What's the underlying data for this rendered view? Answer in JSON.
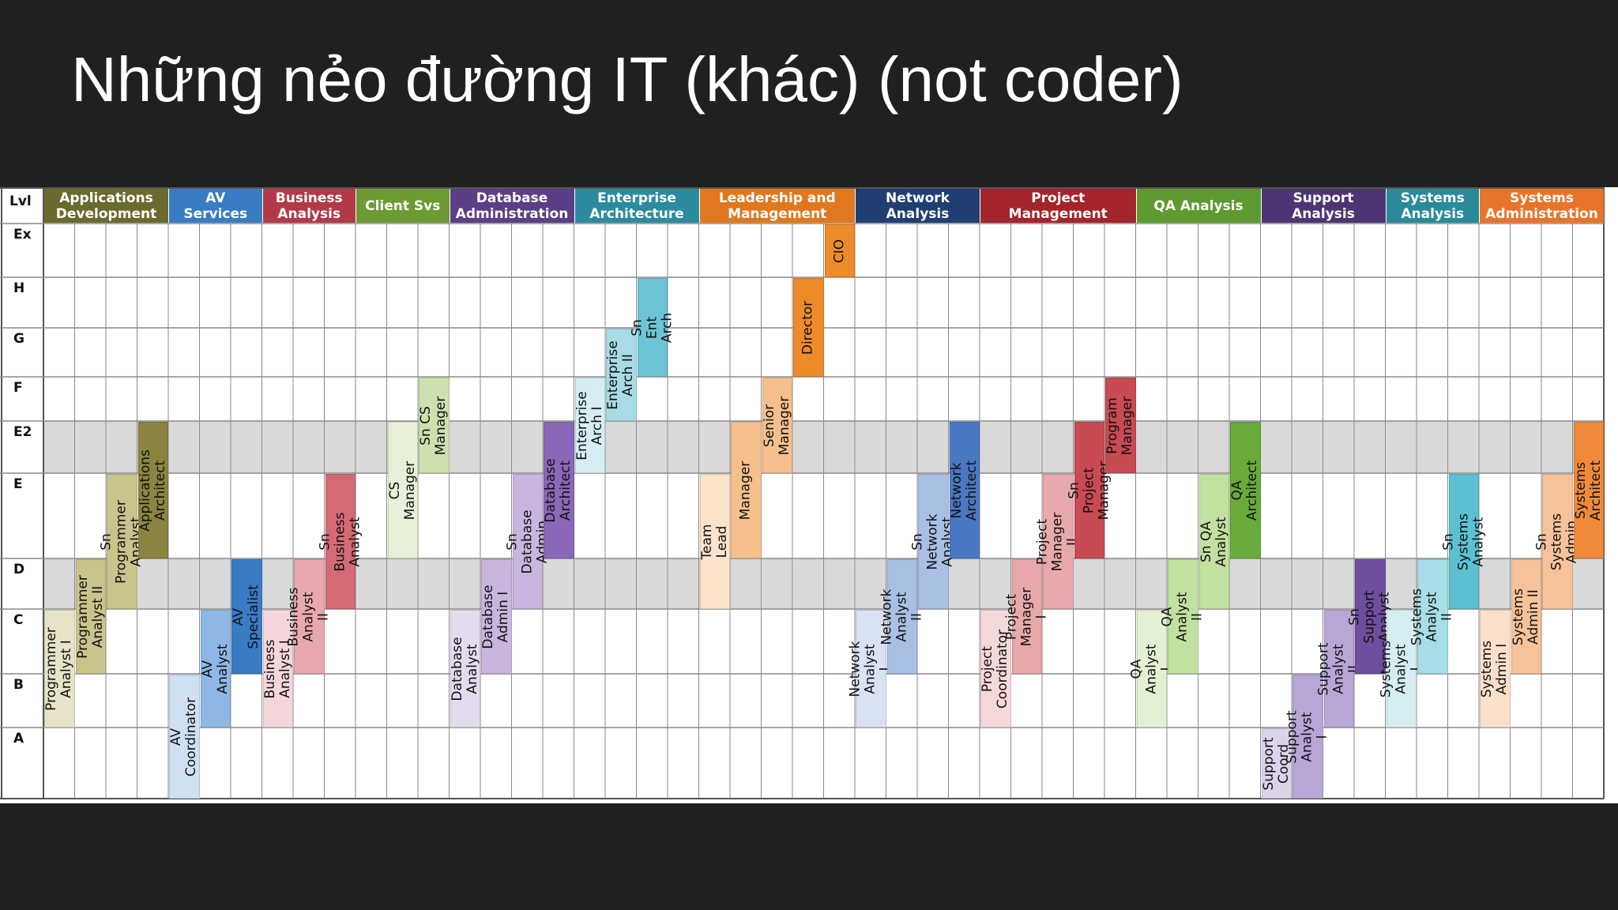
{
  "title": "Những nẻo đường IT (khác) (not coder)",
  "level_header": "Lvl",
  "levels": [
    "Ex",
    "H",
    "G",
    "F",
    "E2",
    "E",
    "D",
    "C",
    "B",
    "A"
  ],
  "shaded_levels": [
    "E2",
    "D"
  ],
  "categories": [
    {
      "label": "Applications\nDevelopment",
      "color": "#6b6a2e",
      "light": "#e6e3c8",
      "mid": "#c9c48c",
      "dark": "#8a8440"
    },
    {
      "label": "AV\nServices",
      "color": "#3a7cc4",
      "light": "#cfe0f3",
      "mid": "#8fb7e6",
      "dark": "#3a7cc4"
    },
    {
      "label": "Business\nAnalysis",
      "color": "#b23a48",
      "light": "#f5d6da",
      "mid": "#e8a8b0",
      "dark": "#d46a76"
    },
    {
      "label": "Client Svs",
      "color": "#6e9a34",
      "light": "#e7f0d8",
      "mid": "#cde0ae",
      "dark": "#a8c878"
    },
    {
      "label": "Database\nAdministration",
      "color": "#5b3f86",
      "light": "#e3dbee",
      "mid": "#c8b6de",
      "dark": "#8a67b8"
    },
    {
      "label": "Enterprise\nArchitecture",
      "color": "#2c8b9e",
      "light": "#d6eef3",
      "mid": "#a8dbe6",
      "dark": "#6cc4d6"
    },
    {
      "label": "Leadership and\nManagement",
      "color": "#e07820",
      "light": "#fbe3cc",
      "mid": "#f5c08c",
      "dark": "#ef8a2a"
    },
    {
      "label": "Network\nAnalysis",
      "color": "#1f3f73",
      "light": "#d8e2f2",
      "mid": "#a9c0e4",
      "dark": "#4a78c2"
    },
    {
      "label": "Project\nManagement",
      "color": "#a3242a",
      "light": "#f5d8da",
      "mid": "#e8a9ac",
      "dark": "#c84a52"
    },
    {
      "label": "QA Analysis",
      "color": "#5e9a2f",
      "light": "#e4f0d4",
      "mid": "#c2e0a0",
      "dark": "#6aaa3a"
    },
    {
      "label": "Support\nAnalysis",
      "color": "#4d3574",
      "light": "#dcd3ea",
      "mid": "#b8a6d6",
      "dark": "#6e4e9e"
    },
    {
      "label": "Systems\nAnalysis",
      "color": "#2a8a9a",
      "light": "#d6eef2",
      "mid": "#a6dde6",
      "dark": "#5cc0d0"
    },
    {
      "label": "Systems\nAdministration",
      "color": "#e8742a",
      "light": "#fbe0cc",
      "mid": "#f6c29a",
      "dark": "#f08a3a"
    }
  ],
  "roles": [
    {
      "cat": 0,
      "col": 0,
      "from": "B",
      "to": "C",
      "shade": "light",
      "label": "Programmer\nAnalyst I"
    },
    {
      "cat": 0,
      "col": 1,
      "from": "C",
      "to": "D",
      "shade": "mid",
      "label": "Programmer\nAnalyst II"
    },
    {
      "cat": 0,
      "col": 2,
      "from": "D",
      "to": "E",
      "shade": "mid",
      "label": "Sn Programmer\nAnalyst"
    },
    {
      "cat": 0,
      "col": 3,
      "from": "E",
      "to": "E2",
      "shade": "dark",
      "label": "Applications\nArchitect"
    },
    {
      "cat": 1,
      "col": 0,
      "from": "A",
      "to": "B",
      "shade": "light",
      "label": "AV Coordinator"
    },
    {
      "cat": 1,
      "col": 1,
      "from": "B",
      "to": "C",
      "shade": "mid",
      "label": "AV Analyst"
    },
    {
      "cat": 1,
      "col": 2,
      "from": "C",
      "to": "D",
      "shade": "dark",
      "label": "AV Specialist"
    },
    {
      "cat": 2,
      "col": 0,
      "from": "B",
      "to": "C",
      "shade": "light",
      "label": "Business\nAnalyst I"
    },
    {
      "cat": 2,
      "col": 1,
      "from": "C",
      "to": "D",
      "shade": "mid",
      "label": "Business\nAnalyst II"
    },
    {
      "cat": 2,
      "col": 2,
      "from": "D",
      "to": "E",
      "shade": "dark",
      "label": "Sn Business\nAnalyst"
    },
    {
      "cat": 3,
      "col": 1,
      "from": "E",
      "to": "E2",
      "shade": "light",
      "label": "CS Manager"
    },
    {
      "cat": 3,
      "col": 2,
      "from": "E2",
      "to": "F",
      "shade": "mid",
      "label": "Sn CS\nManager"
    },
    {
      "cat": 4,
      "col": 0,
      "from": "B",
      "to": "C",
      "shade": "light",
      "label": "Database\nAnalyst"
    },
    {
      "cat": 4,
      "col": 1,
      "from": "C",
      "to": "D",
      "shade": "mid",
      "label": "Database\nAdmin I"
    },
    {
      "cat": 4,
      "col": 2,
      "from": "D",
      "to": "E",
      "shade": "mid",
      "label": "Sn Database\nAdmin"
    },
    {
      "cat": 4,
      "col": 3,
      "from": "E",
      "to": "E2",
      "shade": "dark",
      "label": "Database\nArchitect"
    },
    {
      "cat": 5,
      "col": 0,
      "from": "E2",
      "to": "F",
      "shade": "light",
      "label": "Enterprise\nArch I"
    },
    {
      "cat": 5,
      "col": 1,
      "from": "F",
      "to": "G",
      "shade": "mid",
      "label": "Enterprise\nArch II"
    },
    {
      "cat": 5,
      "col": 2,
      "from": "G",
      "to": "H",
      "shade": "dark",
      "label": "Sn Ent Arch"
    },
    {
      "cat": 6,
      "col": 0,
      "from": "D",
      "to": "E",
      "shade": "light",
      "label": "Team Lead"
    },
    {
      "cat": 6,
      "col": 1,
      "from": "E",
      "to": "E2",
      "shade": "mid",
      "label": "Manager"
    },
    {
      "cat": 6,
      "col": 2,
      "from": "E2",
      "to": "F",
      "shade": "mid",
      "label": "Senior\nManager"
    },
    {
      "cat": 6,
      "col": 3,
      "from": "G",
      "to": "H",
      "shade": "dark",
      "label": "Director"
    },
    {
      "cat": 6,
      "col": 4,
      "from": "Ex",
      "to": "Ex",
      "shade": "dark",
      "label": "CIO"
    },
    {
      "cat": 7,
      "col": 0,
      "from": "B",
      "to": "C",
      "shade": "light",
      "label": "Network\nAnalyst I"
    },
    {
      "cat": 7,
      "col": 1,
      "from": "C",
      "to": "D",
      "shade": "mid",
      "label": "Network\nAnalyst II"
    },
    {
      "cat": 7,
      "col": 2,
      "from": "D",
      "to": "E",
      "shade": "mid",
      "label": "Sn Network\nAnalyst"
    },
    {
      "cat": 7,
      "col": 3,
      "from": "E",
      "to": "E2",
      "shade": "dark",
      "label": "Network Architect"
    },
    {
      "cat": 8,
      "col": 0,
      "from": "B",
      "to": "C",
      "shade": "light",
      "label": "Project\nCoordinator"
    },
    {
      "cat": 8,
      "col": 1,
      "from": "C",
      "to": "D",
      "shade": "mid",
      "label": "Project\nManager I"
    },
    {
      "cat": 8,
      "col": 2,
      "from": "D",
      "to": "E",
      "shade": "mid",
      "label": "Project Manager\nII"
    },
    {
      "cat": 8,
      "col": 3,
      "from": "E",
      "to": "E2",
      "shade": "dark",
      "label": "Sn Project\nManager"
    },
    {
      "cat": 8,
      "col": 4,
      "from": "E2",
      "to": "F",
      "shade": "dark",
      "label": "Program\nManager"
    },
    {
      "cat": 9,
      "col": 0,
      "from": "B",
      "to": "C",
      "shade": "light",
      "label": "QA Analyst I"
    },
    {
      "cat": 9,
      "col": 1,
      "from": "C",
      "to": "D",
      "shade": "mid",
      "label": "QA Analyst II"
    },
    {
      "cat": 9,
      "col": 2,
      "from": "D",
      "to": "E",
      "shade": "mid",
      "label": "Sn QA Analyst"
    },
    {
      "cat": 9,
      "col": 3,
      "from": "E",
      "to": "E2",
      "shade": "dark",
      "label": "QA Architect"
    },
    {
      "cat": 10,
      "col": 0,
      "from": "A",
      "to": "A",
      "shade": "light",
      "label": "Support\nCoord"
    },
    {
      "cat": 10,
      "col": 1,
      "from": "A",
      "to": "B",
      "shade": "mid",
      "label": "Support Analyst\nI"
    },
    {
      "cat": 10,
      "col": 2,
      "from": "B",
      "to": "C",
      "shade": "mid",
      "label": "Support\nAnalyst II"
    },
    {
      "cat": 10,
      "col": 3,
      "from": "C",
      "to": "D",
      "shade": "dark",
      "label": "Sn Support\nAnalyst"
    },
    {
      "cat": 11,
      "col": 0,
      "from": "B",
      "to": "C",
      "shade": "light",
      "label": "Systems\nAnalyst I"
    },
    {
      "cat": 11,
      "col": 1,
      "from": "C",
      "to": "D",
      "shade": "mid",
      "label": "Systems\nAnalyst II"
    },
    {
      "cat": 11,
      "col": 2,
      "from": "D",
      "to": "E",
      "shade": "dark",
      "label": "Sn Systems\nAnalyst"
    },
    {
      "cat": 12,
      "col": 0,
      "from": "B",
      "to": "C",
      "shade": "light",
      "label": "Systems\nAdmin I"
    },
    {
      "cat": 12,
      "col": 1,
      "from": "C",
      "to": "D",
      "shade": "mid",
      "label": "Systems\nAdmin II"
    },
    {
      "cat": 12,
      "col": 2,
      "from": "D",
      "to": "E",
      "shade": "mid",
      "label": "Sn Systems\nAdmin"
    },
    {
      "cat": 12,
      "col": 3,
      "from": "E",
      "to": "E2",
      "shade": "dark",
      "label": "Systems\nArchitect"
    }
  ]
}
